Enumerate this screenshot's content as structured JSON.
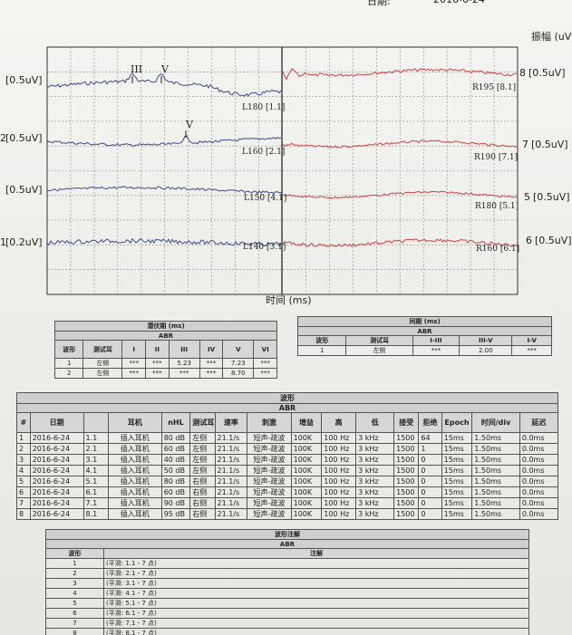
{
  "top_date": {
    "label": "日期:",
    "value": "2016-6-24"
  },
  "chart": {
    "y_axis_label": "振幅 (uV)",
    "x_axis_label": "时间 (ms)",
    "left_scales": [
      "[0.5uV]",
      "[0.5uV]",
      "[0.5uV]",
      "[0.2uV]"
    ],
    "left_prefix": [
      "",
      "2",
      "",
      "1"
    ],
    "right_scales": [
      {
        "num": "8",
        "scale": "[0.5uV]"
      },
      {
        "num": "7",
        "scale": "[0.5uV]"
      },
      {
        "num": "5",
        "scale": "[0.5uV]"
      },
      {
        "num": "6",
        "scale": "[0.5uV]"
      }
    ],
    "left_trace_labels": [
      "L180 [1.1]",
      "L160 [2.1]",
      "L150 [4.1]",
      "L140 [3.1]"
    ],
    "right_trace_labels": [
      "R195 [8.1]",
      "R190 [7.1]",
      "R180 [5.1]",
      "R160 [6.1]"
    ],
    "peak_labels": {
      "iii": "III",
      "v1": "V",
      "v2": "V"
    },
    "left_trace_color": "#3a4a8a",
    "right_trace_color": "#d04040"
  },
  "latency_table": {
    "title": "潜伏期 (ms)",
    "subtitle": "ABR",
    "headers": [
      "波形",
      "测试耳",
      "I",
      "II",
      "III",
      "IV",
      "V",
      "VI"
    ],
    "rows": [
      [
        "1",
        "左侧",
        "***",
        "***",
        "5.23",
        "***",
        "7.23",
        "***"
      ],
      [
        "2",
        "左侧",
        "***",
        "***",
        "***",
        "***",
        "8.70",
        "***"
      ]
    ]
  },
  "interval_table": {
    "title": "间期 (ms)",
    "subtitle": "ABR",
    "headers": [
      "波形",
      "测试耳",
      "I-III",
      "III-V",
      "I-V"
    ],
    "rows": [
      [
        "1",
        "左侧",
        "***",
        "2.00",
        "***"
      ]
    ]
  },
  "waveform_table": {
    "title": "波形",
    "subtitle": "ABR",
    "headers": [
      "#",
      "日期",
      "",
      "耳机",
      "nHL",
      "测试耳",
      "速率",
      "刺激",
      "增益",
      "高",
      "低",
      "接受",
      "拒绝",
      "Epoch",
      "时间/div",
      "延迟"
    ],
    "rows": [
      [
        "1",
        "2016-6-24",
        "1.1",
        "插入耳机",
        "80 dB",
        "左侧",
        "21.1/s",
        "短声-疏波",
        "100K",
        "100 Hz",
        "3 kHz",
        "1500",
        "64",
        "15ms",
        "1.50ms",
        "0.0ms"
      ],
      [
        "2",
        "2016-6-24",
        "2.1",
        "插入耳机",
        "60 dB",
        "左侧",
        "21.1/s",
        "短声-疏波",
        "100K",
        "100 Hz",
        "3 kHz",
        "1500",
        "1",
        "15ms",
        "1.50ms",
        "0.0ms"
      ],
      [
        "3",
        "2016-6-24",
        "3.1",
        "插入耳机",
        "40 dB",
        "左侧",
        "21.1/s",
        "短声-疏波",
        "100K",
        "100 Hz",
        "3 kHz",
        "1500",
        "0",
        "15ms",
        "1.50ms",
        "0.0ms"
      ],
      [
        "4",
        "2016-6-24",
        "4.1",
        "插入耳机",
        "50 dB",
        "左侧",
        "21.1/s",
        "短声-疏波",
        "100K",
        "100 Hz",
        "3 kHz",
        "1500",
        "0",
        "15ms",
        "1.50ms",
        "0.0ms"
      ],
      [
        "5",
        "2016-6-24",
        "5.1",
        "插入耳机",
        "80 dB",
        "右侧",
        "21.1/s",
        "短声-疏波",
        "100K",
        "100 Hz",
        "3 kHz",
        "1500",
        "0",
        "15ms",
        "1.50ms",
        "0.0ms"
      ],
      [
        "6",
        "2016-6-24",
        "6.1",
        "插入耳机",
        "60 dB",
        "右侧",
        "21.1/s",
        "短声-疏波",
        "100K",
        "100 Hz",
        "3 kHz",
        "1500",
        "0",
        "15ms",
        "1.50ms",
        "0.0ms"
      ],
      [
        "7",
        "2016-6-24",
        "7.1",
        "插入耳机",
        "90 dB",
        "右侧",
        "21.1/s",
        "短声-疏波",
        "100K",
        "100 Hz",
        "3 kHz",
        "1500",
        "0",
        "15ms",
        "1.50ms",
        "0.0ms"
      ],
      [
        "8",
        "2016-6-24",
        "8.1",
        "插入耳机",
        "95 dB",
        "右侧",
        "21.1/s",
        "短声-疏波",
        "100K",
        "100 Hz",
        "3 kHz",
        "1500",
        "0",
        "15ms",
        "1.50ms",
        "0.0ms"
      ]
    ]
  },
  "annotation_table": {
    "title": "波形注解",
    "subtitle": "ABR",
    "headers": [
      "波形",
      "注解"
    ],
    "rows": [
      [
        "1",
        "(平滑: 1.1 - 7 点)"
      ],
      [
        "2",
        "(平滑: 2.1 - 7 点)"
      ],
      [
        "3",
        "(平滑: 3.1 - 7 点)"
      ],
      [
        "4",
        "(平滑: 4.1 - 7 点)"
      ],
      [
        "5",
        "(平滑: 5.1 - 7 点)"
      ],
      [
        "6",
        "(平滑: 6.1 - 7 点)"
      ],
      [
        "7",
        "(平滑: 7.1 - 7 点)"
      ],
      [
        "8",
        "(平滑: 8.1 - 7 点)"
      ]
    ]
  }
}
